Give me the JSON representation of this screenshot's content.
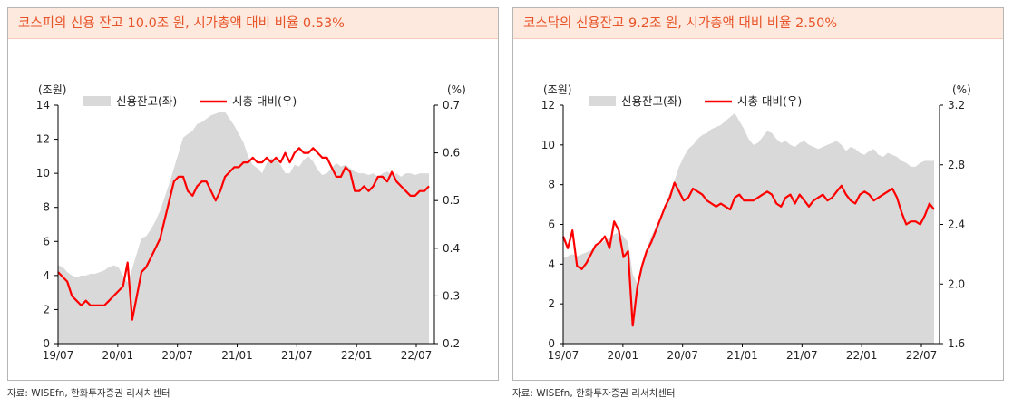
{
  "source_left": "자료: WISEfn, 한화투자증권 리서치센터",
  "source_right": "자료: WISEfn, 한화투자증권 리서치센터",
  "colors": {
    "area": "#d9d9d9",
    "line": "#ff0000",
    "title_bg": "#fde9dd",
    "title_text": "#e8542a"
  },
  "chart_data": [
    {
      "type": "area+line",
      "title": "코스피의 신용 잔고 10.0조 원, 시가총액 대비 비율 0.53%",
      "y_unit_left": "(조원)",
      "y_unit_right": "(%)",
      "ylim_left": [
        0,
        14
      ],
      "ylim_right": [
        0.2,
        0.7
      ],
      "yticks_left": [
        "0",
        "2",
        "4",
        "6",
        "8",
        "10",
        "12",
        "14"
      ],
      "yticks_right": [
        "0.2",
        "0.3",
        "0.4",
        "0.5",
        "0.6",
        "0.7"
      ],
      "xticks": [
        "19/07",
        "20/01",
        "20/07",
        "21/01",
        "21/07",
        "22/01",
        "22/07"
      ],
      "legend": [
        "신용잔고(좌)",
        "시총 대비(우)"
      ],
      "x": [
        0,
        0.5,
        1,
        1.5,
        2,
        2.5,
        3,
        3.5,
        4,
        4.5,
        5,
        5.5,
        6,
        6.5,
        7,
        7.5,
        8,
        8.5,
        9,
        9.5,
        10,
        10.5,
        11,
        11.5,
        12,
        12.5,
        13,
        13.5,
        14,
        14.5,
        15,
        15.5,
        16,
        16.5,
        17,
        17.5,
        18,
        18.5,
        19,
        19.5,
        20,
        20.5,
        21,
        21.5,
        22,
        22.5,
        23,
        23.5,
        24,
        24.5,
        25,
        25.5,
        26,
        26.5,
        27,
        27.5,
        28,
        28.5,
        29,
        29.5,
        30,
        30.5,
        31,
        31.5,
        32,
        32.5,
        33,
        33.5,
        34,
        34.5,
        35,
        35.5,
        36,
        36.5,
        37,
        37.5,
        38,
        38.5,
        39,
        39.5,
        40
      ],
      "series": [
        {
          "name": "신용잔고(좌)",
          "values": [
            4.6,
            4.5,
            4.2,
            4.0,
            3.9,
            4.0,
            4.0,
            4.1,
            4.1,
            4.2,
            4.3,
            4.5,
            4.6,
            4.5,
            4.0,
            3.6,
            4.4,
            5.3,
            6.2,
            6.3,
            6.7,
            7.2,
            7.8,
            8.6,
            9.4,
            10.3,
            11.2,
            12.1,
            12.3,
            12.5,
            12.9,
            13.0,
            13.2,
            13.4,
            13.5,
            13.6,
            13.6,
            13.2,
            12.8,
            12.3,
            11.8,
            11.0,
            10.5,
            10.3,
            10.0,
            10.6,
            10.9,
            10.8,
            10.5,
            10.0,
            10.0,
            10.5,
            10.4,
            10.8,
            11.0,
            10.7,
            10.2,
            9.9,
            10.0,
            10.3,
            10.6,
            10.4,
            10.5,
            10.3,
            10.1,
            10.0,
            10.0,
            9.9,
            10.0,
            9.8,
            10.0,
            10.1,
            9.9,
            10.0,
            9.8,
            10.0,
            10.0,
            9.9,
            10.0,
            10.0,
            10.0
          ]
        },
        {
          "name": "시총 대비(우)",
          "values": [
            0.35,
            0.34,
            0.33,
            0.3,
            0.29,
            0.28,
            0.29,
            0.28,
            0.28,
            0.28,
            0.28,
            0.29,
            0.3,
            0.31,
            0.32,
            0.37,
            0.25,
            0.3,
            0.35,
            0.36,
            0.38,
            0.4,
            0.42,
            0.46,
            0.5,
            0.54,
            0.55,
            0.55,
            0.52,
            0.51,
            0.53,
            0.54,
            0.54,
            0.52,
            0.5,
            0.52,
            0.55,
            0.56,
            0.57,
            0.57,
            0.58,
            0.58,
            0.59,
            0.58,
            0.58,
            0.59,
            0.58,
            0.59,
            0.58,
            0.6,
            0.58,
            0.6,
            0.61,
            0.6,
            0.6,
            0.61,
            0.6,
            0.59,
            0.59,
            0.57,
            0.55,
            0.55,
            0.57,
            0.56,
            0.52,
            0.52,
            0.53,
            0.52,
            0.53,
            0.55,
            0.55,
            0.54,
            0.56,
            0.54,
            0.53,
            0.52,
            0.51,
            0.51,
            0.52,
            0.52,
            0.53
          ]
        }
      ]
    },
    {
      "type": "area+line",
      "title": "코스닥의 신용잔고 9.2조 원, 시가총액 대비 비율 2.50%",
      "y_unit_left": "(조원)",
      "y_unit_right": "(%)",
      "ylim_left": [
        0,
        12
      ],
      "ylim_right": [
        1.6,
        3.2
      ],
      "yticks_left": [
        "0",
        "2",
        "4",
        "6",
        "8",
        "10",
        "12"
      ],
      "yticks_right": [
        "1.6",
        "2.0",
        "2.4",
        "2.8",
        "3.2"
      ],
      "xticks": [
        "19/07",
        "20/01",
        "20/07",
        "21/01",
        "21/07",
        "22/01",
        "22/07"
      ],
      "legend": [
        "신용잔고(좌)",
        "시총 대비(우)"
      ],
      "x": [
        0,
        0.5,
        1,
        1.5,
        2,
        2.5,
        3,
        3.5,
        4,
        4.5,
        5,
        5.5,
        6,
        6.5,
        7,
        7.5,
        8,
        8.5,
        9,
        9.5,
        10,
        10.5,
        11,
        11.5,
        12,
        12.5,
        13,
        13.5,
        14,
        14.5,
        15,
        15.5,
        16,
        16.5,
        17,
        17.5,
        18,
        18.5,
        19,
        19.5,
        20,
        20.5,
        21,
        21.5,
        22,
        22.5,
        23,
        23.5,
        24,
        24.5,
        25,
        25.5,
        26,
        26.5,
        27,
        27.5,
        28,
        28.5,
        29,
        29.5,
        30,
        30.5,
        31,
        31.5,
        32,
        32.5,
        33,
        33.5,
        34,
        34.5,
        35,
        35.5,
        36,
        36.5,
        37,
        37.5,
        38,
        38.5,
        39,
        39.5,
        40
      ],
      "series": [
        {
          "name": "신용잔고(좌)",
          "values": [
            4.3,
            4.4,
            4.5,
            4.4,
            4.5,
            4.6,
            4.7,
            4.9,
            5.0,
            5.2,
            5.3,
            5.5,
            5.6,
            5.4,
            5.1,
            3.5,
            3.0,
            4.0,
            4.8,
            5.4,
            5.9,
            6.4,
            7.0,
            7.6,
            8.2,
            8.9,
            9.4,
            9.8,
            10.0,
            10.3,
            10.5,
            10.6,
            10.8,
            10.9,
            11.0,
            11.2,
            11.4,
            11.6,
            11.2,
            10.8,
            10.3,
            10.0,
            10.1,
            10.4,
            10.7,
            10.6,
            10.3,
            10.1,
            10.2,
            10.0,
            9.9,
            10.1,
            10.2,
            10.0,
            9.9,
            9.8,
            9.9,
            10.0,
            10.1,
            10.2,
            10.0,
            9.7,
            9.9,
            9.8,
            9.6,
            9.5,
            9.7,
            9.8,
            9.5,
            9.4,
            9.6,
            9.5,
            9.4,
            9.2,
            9.1,
            8.9,
            8.9,
            9.1,
            9.2,
            9.2,
            9.2
          ]
        },
        {
          "name": "시총 대비(우)",
          "values": [
            2.32,
            2.24,
            2.36,
            2.12,
            2.1,
            2.14,
            2.2,
            2.26,
            2.28,
            2.32,
            2.24,
            2.42,
            2.36,
            2.18,
            2.22,
            1.72,
            1.98,
            2.12,
            2.22,
            2.28,
            2.36,
            2.44,
            2.52,
            2.58,
            2.68,
            2.62,
            2.56,
            2.58,
            2.64,
            2.62,
            2.6,
            2.56,
            2.54,
            2.52,
            2.54,
            2.52,
            2.5,
            2.58,
            2.6,
            2.56,
            2.56,
            2.56,
            2.58,
            2.6,
            2.62,
            2.6,
            2.54,
            2.52,
            2.58,
            2.6,
            2.54,
            2.6,
            2.56,
            2.52,
            2.56,
            2.58,
            2.6,
            2.56,
            2.58,
            2.62,
            2.66,
            2.6,
            2.56,
            2.54,
            2.6,
            2.62,
            2.6,
            2.56,
            2.58,
            2.6,
            2.62,
            2.64,
            2.58,
            2.48,
            2.4,
            2.42,
            2.42,
            2.4,
            2.46,
            2.54,
            2.5
          ]
        }
      ]
    }
  ]
}
